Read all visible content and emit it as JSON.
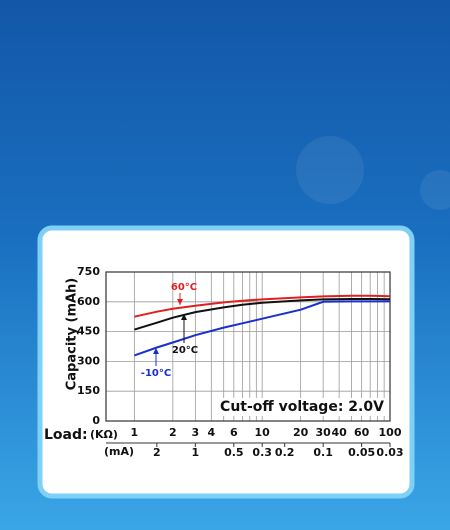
{
  "chart_data": {
    "type": "line",
    "ylabel": "Capacity (mAh)",
    "xlabel": "Load:",
    "xunit": "(KΩ)",
    "x2label": "(mA)",
    "annotation": "Cut-off voltage: 2.0V",
    "x": [
      1,
      1.5,
      2,
      3,
      5,
      7,
      10,
      20,
      30,
      50,
      70,
      100
    ],
    "series": [
      {
        "name": "60°C",
        "color": "#e02020",
        "values": [
          525,
          550,
          565,
          580,
          597,
          605,
          612,
          622,
          627,
          630,
          630,
          628
        ]
      },
      {
        "name": "20°C",
        "color": "#111111",
        "values": [
          460,
          495,
          520,
          548,
          572,
          585,
          595,
          607,
          612,
          614,
          614,
          613
        ]
      },
      {
        "name": "-10°C",
        "color": "#1a2fd0",
        "values": [
          330,
          370,
          395,
          432,
          470,
          492,
          515,
          560,
          600,
          602,
          602,
          602
        ]
      }
    ],
    "xlim": [
      0.6,
      100
    ],
    "log_x": true,
    "xticks": [
      1,
      2,
      3,
      4,
      6,
      10,
      20,
      30,
      40,
      60,
      100
    ],
    "xminor": [
      5,
      7,
      8,
      9,
      50,
      70,
      80,
      90
    ],
    "x2ticks": [
      {
        "value": 1.5,
        "label": "2"
      },
      {
        "value": 3,
        "label": "1"
      },
      {
        "value": 6,
        "label": "0.5"
      },
      {
        "value": 10,
        "label": "0.3"
      },
      {
        "value": 15,
        "label": "0.2"
      },
      {
        "value": 30,
        "label": "0.1"
      },
      {
        "value": 60,
        "label": "0.05"
      },
      {
        "value": 100,
        "label": "0.03"
      }
    ],
    "ylim": [
      0,
      750
    ],
    "yticks": [
      0,
      150,
      300,
      450,
      600,
      750
    ],
    "grid": true
  }
}
